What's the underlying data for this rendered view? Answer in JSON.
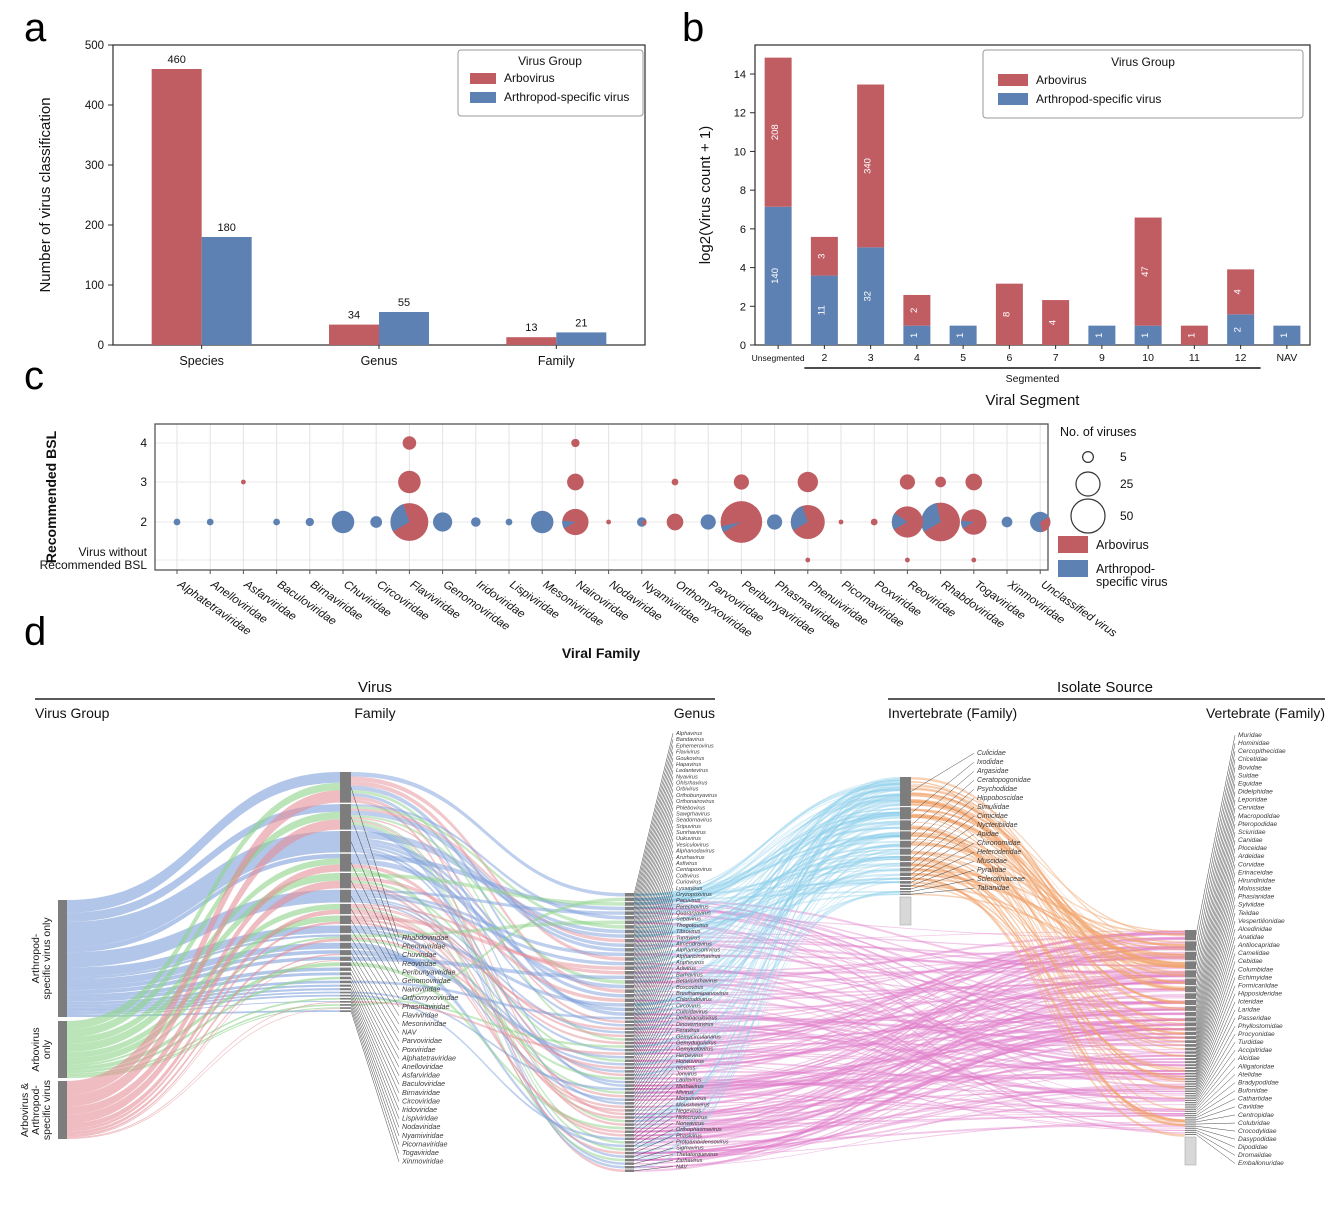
{
  "figure": {
    "panels": [
      {
        "letter": "a"
      },
      {
        "letter": "b"
      },
      {
        "letter": "c"
      },
      {
        "letter": "d"
      }
    ]
  },
  "palette": {
    "arbovirus": "#c05d63",
    "arthropod": "#5e81b4",
    "sankey_blue": "#7ea0dc",
    "sankey_green": "#8ed48a",
    "sankey_red": "#e59098",
    "node_gray": "#7d7d7d",
    "node_pale": "#d8d8d8"
  },
  "chart_data": [
    {
      "id": "a",
      "type": "bar",
      "legend_title": "Virus Group",
      "categories": [
        "Species",
        "Genus",
        "Family"
      ],
      "series": [
        {
          "name": "Arbovirus",
          "color": "#c05d63",
          "values": [
            460,
            34,
            13
          ]
        },
        {
          "name": "Arthropod-specific virus",
          "color": "#5e81b4",
          "values": [
            180,
            55,
            21
          ]
        }
      ],
      "ylabel": "Number of virus classification",
      "ylim": [
        0,
        500
      ],
      "yticks": [
        0,
        100,
        200,
        300,
        400,
        500
      ]
    },
    {
      "id": "b",
      "type": "stacked_bar",
      "legend_title": "Virus Group",
      "transform": "log2(count + 1)",
      "categories": [
        "Unsegmented",
        "2",
        "3",
        "4",
        "5",
        "6",
        "7",
        "9",
        "10",
        "11",
        "12",
        "NAV"
      ],
      "series": [
        {
          "name": "Arthropod-specific virus",
          "color": "#5e81b4",
          "counts": [
            140,
            11,
            32,
            1,
            1,
            0,
            0,
            1,
            1,
            0,
            2,
            1
          ]
        },
        {
          "name": "Arbovirus",
          "color": "#c05d63",
          "counts": [
            208,
            3,
            340,
            2,
            0,
            8,
            4,
            0,
            47,
            1,
            4,
            0
          ]
        }
      ],
      "ylabel": "log2(Virus count + 1)",
      "xlabel": "Viral Segment",
      "yticks": [
        0,
        2,
        4,
        6,
        8,
        10,
        12,
        14
      ],
      "bracket": {
        "label": "Segmented",
        "from": "2",
        "to": "12"
      }
    },
    {
      "id": "c",
      "type": "bubble",
      "ylabel": "Recommended BSL",
      "xlabel": "Viral Family",
      "rows": [
        "4",
        "3",
        "2",
        "Virus without|Recommended BSL"
      ],
      "families": [
        "Alphatetraviridae",
        "Anelloviridae",
        "Asfarviridae",
        "Baculoviridae",
        "Birnaviridae",
        "Chuviridae",
        "Circoviridae",
        "Flaviviridae",
        "Genomoviridae",
        "Iridoviridae",
        "Lispiviridae",
        "Mesoniviridae",
        "Nairoviridae",
        "Nodaviridae",
        "Nyamiviridae",
        "Orthomyxoviridae",
        "Parvoviridae",
        "Peribunyaviridae",
        "Phasmaviridae",
        "Phenuiviridae",
        "Picornaviridae",
        "Poxviridae",
        "Reoviridae",
        "Rhabdoviridae",
        "Togaviridae",
        "Xinmoviridae",
        "Unclassified virus"
      ],
      "bubbles": [
        {
          "family": "Alphatetraviridae",
          "bsl": "2",
          "n": 2,
          "arbo": 0
        },
        {
          "family": "Anelloviridae",
          "bsl": "2",
          "n": 2,
          "arbo": 0
        },
        {
          "family": "Asfarviridae",
          "bsl": "3",
          "n": 1,
          "arbo": 1
        },
        {
          "family": "Baculoviridae",
          "bsl": "2",
          "n": 2,
          "arbo": 0
        },
        {
          "family": "Birnaviridae",
          "bsl": "2",
          "n": 3,
          "arbo": 0
        },
        {
          "family": "Chuviridae",
          "bsl": "2",
          "n": 22,
          "arbo": 0
        },
        {
          "family": "Circoviridae",
          "bsl": "2",
          "n": 6,
          "arbo": 0
        },
        {
          "family": "Flaviviridae",
          "bsl": "4",
          "n": 8,
          "arbo": 1
        },
        {
          "family": "Flaviviridae",
          "bsl": "3",
          "n": 22,
          "arbo": 1
        },
        {
          "family": "Flaviviridae",
          "bsl": "2",
          "n": 62,
          "arbo": 0.72
        },
        {
          "family": "Genomoviridae",
          "bsl": "2",
          "n": 16,
          "arbo": 0
        },
        {
          "family": "Iridoviridae",
          "bsl": "2",
          "n": 4,
          "arbo": 0
        },
        {
          "family": "Lispiviridae",
          "bsl": "2",
          "n": 2,
          "arbo": 0
        },
        {
          "family": "Mesoniviridae",
          "bsl": "2",
          "n": 22,
          "arbo": 0
        },
        {
          "family": "Nairoviridae",
          "bsl": "4",
          "n": 3,
          "arbo": 1
        },
        {
          "family": "Nairoviridae",
          "bsl": "3",
          "n": 12,
          "arbo": 1
        },
        {
          "family": "Nairoviridae",
          "bsl": "2",
          "n": 30,
          "arbo": 0.9
        },
        {
          "family": "Nodaviridae",
          "bsl": "2",
          "n": 1,
          "arbo": 1
        },
        {
          "family": "Nyamiviridae",
          "bsl": "2",
          "n": 4,
          "arbo": 0.25
        },
        {
          "family": "Orthomyxoviridae",
          "bsl": "3",
          "n": 2,
          "arbo": 1
        },
        {
          "family": "Orthomyxoviridae",
          "bsl": "2",
          "n": 12,
          "arbo": 1
        },
        {
          "family": "Parvoviridae",
          "bsl": "2",
          "n": 10,
          "arbo": 0
        },
        {
          "family": "Peribunyaviridae",
          "bsl": "3",
          "n": 10,
          "arbo": 1
        },
        {
          "family": "Peribunyaviridae",
          "bsl": "2",
          "n": 75,
          "arbo": 0.95
        },
        {
          "family": "Phasmaviridae",
          "bsl": "2",
          "n": 10,
          "arbo": 0
        },
        {
          "family": "Phenuiviridae",
          "bsl": "3",
          "n": 18,
          "arbo": 1
        },
        {
          "family": "Phenuiviridae",
          "bsl": "2",
          "n": 50,
          "arbo": 0.72
        },
        {
          "family": "Phenuiviridae",
          "bsl": "0",
          "n": 1,
          "arbo": 1
        },
        {
          "family": "Picornaviridae",
          "bsl": "2",
          "n": 1,
          "arbo": 1
        },
        {
          "family": "Poxviridae",
          "bsl": "2",
          "n": 2,
          "arbo": 1
        },
        {
          "family": "Reoviridae",
          "bsl": "3",
          "n": 10,
          "arbo": 1
        },
        {
          "family": "Reoviridae",
          "bsl": "2",
          "n": 42,
          "arbo": 0.82
        },
        {
          "family": "Reoviridae",
          "bsl": "0",
          "n": 1,
          "arbo": 1
        },
        {
          "family": "Rhabdoviridae",
          "bsl": "3",
          "n": 5,
          "arbo": 1
        },
        {
          "family": "Rhabdoviridae",
          "bsl": "2",
          "n": 65,
          "arbo": 0.7
        },
        {
          "family": "Togaviridae",
          "bsl": "3",
          "n": 12,
          "arbo": 1
        },
        {
          "family": "Togaviridae",
          "bsl": "2",
          "n": 28,
          "arbo": 0.9
        },
        {
          "family": "Togaviridae",
          "bsl": "0",
          "n": 1,
          "arbo": 1
        },
        {
          "family": "Xinmoviridae",
          "bsl": "2",
          "n": 5,
          "arbo": 0
        },
        {
          "family": "Unclassified virus",
          "bsl": "2",
          "n": 18,
          "arbo": 0.3
        }
      ],
      "size_legend": {
        "title": "No. of viruses",
        "values": [
          5,
          25,
          50
        ]
      },
      "color_legend": [
        {
          "label": "Arbovirus",
          "color": "#c05d63"
        },
        {
          "label": "Arthropod-|specific virus",
          "color": "#5e81b4"
        }
      ]
    },
    {
      "id": "d",
      "type": "sankey",
      "headers": {
        "virus": "Virus",
        "virus_columns": [
          "Virus Group",
          "Family",
          "Genus"
        ],
        "isolate": "Isolate Source",
        "isolate_columns": [
          "Invertebrate (Family)",
          "Vertebrate (Family)"
        ]
      },
      "groups": [
        {
          "label": "Arthropod-specific virus only",
          "lines": [
            "Arthropod-",
            "specific virus only"
          ],
          "color": "#7ea0dc"
        },
        {
          "label": "Arbovirus only",
          "lines": [
            "Arbovirus",
            "only"
          ],
          "color": "#8ed48a"
        },
        {
          "label": "Arbovirus & Arthropod-specific virus",
          "lines": [
            "Arbovirus &",
            "Arthropod-",
            "specific virus"
          ],
          "color": "#e59098"
        }
      ],
      "families": [
        {
          "name": "Rhabdoviridae",
          "mix": [
            0.35,
            0.25,
            0.4
          ]
        },
        {
          "name": "Phenuiviridae",
          "mix": [
            0.3,
            0.3,
            0.4
          ]
        },
        {
          "name": "Chuviridae",
          "mix": [
            1,
            0,
            0
          ]
        },
        {
          "name": "Reoviridae",
          "mix": [
            0.25,
            0.35,
            0.4
          ]
        },
        {
          "name": "Peribunyaviridae",
          "mix": [
            0,
            0.5,
            0.5
          ]
        },
        {
          "name": "Genomoviridae",
          "mix": [
            1,
            0,
            0
          ]
        },
        {
          "name": "Nairoviridae",
          "mix": [
            0,
            0.55,
            0.45
          ]
        },
        {
          "name": "Orthomyxoviridae",
          "mix": [
            0,
            0.7,
            0.3
          ]
        },
        {
          "name": "Phasmaviridae",
          "mix": [
            1,
            0,
            0
          ]
        },
        {
          "name": "Flaviviridae",
          "mix": [
            0.3,
            0.3,
            0.4
          ]
        },
        {
          "name": "Mesoniviridae",
          "mix": [
            1,
            0,
            0
          ]
        },
        {
          "name": "NAV",
          "mix": [
            0.7,
            0,
            0.3
          ]
        },
        {
          "name": "Parvoviridae",
          "mix": [
            0.8,
            0,
            0.2
          ]
        },
        {
          "name": "Poxviridae",
          "mix": [
            0,
            1,
            0
          ]
        },
        {
          "name": "Alphatetraviridae",
          "mix": [
            1,
            0,
            0
          ]
        },
        {
          "name": "Anelloviridae",
          "mix": [
            1,
            0,
            0
          ]
        },
        {
          "name": "Asfarviridae",
          "mix": [
            0,
            1,
            0
          ]
        },
        {
          "name": "Baculoviridae",
          "mix": [
            1,
            0,
            0
          ]
        },
        {
          "name": "Birnaviridae",
          "mix": [
            1,
            0,
            0
          ]
        },
        {
          "name": "Circoviridae",
          "mix": [
            1,
            0,
            0
          ]
        },
        {
          "name": "Iridoviridae",
          "mix": [
            1,
            0,
            0
          ]
        },
        {
          "name": "Lispiviridae",
          "mix": [
            1,
            0,
            0
          ]
        },
        {
          "name": "Nodaviridae",
          "mix": [
            0,
            1,
            0
          ]
        },
        {
          "name": "Nyamiviridae",
          "mix": [
            0.5,
            0,
            0.5
          ]
        },
        {
          "name": "Picornaviridae",
          "mix": [
            0,
            1,
            0
          ]
        },
        {
          "name": "Togaviridae",
          "mix": [
            0,
            0.6,
            0.4
          ]
        },
        {
          "name": "Xinmoviridae",
          "mix": [
            1,
            0,
            0
          ]
        }
      ],
      "genera": [
        "Alphavirus",
        "Bandavirus",
        "Ephemerovirus",
        "Flavivirus",
        "Goukovirus",
        "Hapavirus",
        "Ledantevirus",
        "Nyavirus",
        "Ohlsrhavirus",
        "Orbivirus",
        "Orthobunyavirus",
        "Orthonairovirus",
        "Phlebovirus",
        "Sawgrhavirus",
        "Seadornavirus",
        "Sripuvirus",
        "Sunrhavirus",
        "Uukuvirus",
        "Vesiculovirus",
        "Alphanodavirus",
        "Arurhavirus",
        "Asfivirus",
        "Centapoxvirus",
        "Coltivirus",
        "Curiovirus",
        "Lyssavirus",
        "Oryzopoxvirus",
        "Pacuvirus",
        "Parechovirus",
        "Quaranjavirus",
        "Sabavirus",
        "Thogotovirus",
        "Tibrovirus",
        "Tupavirus",
        "Almendravirus",
        "Alphamesonivirus",
        "Alpharicinrhavirus",
        "Anphevirus",
        "Arlivirus",
        "Barhavirus",
        "Betaricinrhavirus",
        "Boscovirus",
        "Brevihamaparvovirus",
        "Chlorindovirus",
        "Circovirus",
        "Culicidavirus",
        "Deltabaculovirus",
        "Dinovernavirus",
        "Feravirus",
        "Gemycircularvirus",
        "Gemyduguivirus",
        "Gemykolovirus",
        "Herbevirus",
        "Horwuvirus",
        "Ixovirus",
        "Jonvirus",
        "Laulavirus",
        "Merhavirus",
        "Mivirus",
        "Morsusvirus",
        "Mousrhavirus",
        "Negevirus",
        "Nidecruvirus",
        "Norwavirus",
        "Orthophasmavirus",
        "Phasivirus",
        "Protoambidensovirus",
        "Sigmavirus",
        "Thetatorquevirus",
        "Zarhavirus",
        "NAV"
      ],
      "invertebrates": [
        "Culicidae",
        "Ixodidae",
        "Argasidae",
        "Ceratopogonidae",
        "Psychodidae",
        "Hippoboscidae",
        "Simuliidae",
        "Cimicidae",
        "Nycteribiidae",
        "Apidae",
        "Chironomidae",
        "Heteroderidae",
        "Muscidae",
        "Pyralidae",
        "Sclerotiniaceae",
        "Tabanidae"
      ],
      "vertebrates": [
        "Muridae",
        "Hominidae",
        "Cercopithecidae",
        "Cricetidae",
        "Bovidae",
        "Suidae",
        "Equidae",
        "Didelphidae",
        "Leporidae",
        "Cervidae",
        "Macropodidae",
        "Pteropodidae",
        "Sciuridae",
        "Canidae",
        "Ploceidae",
        "Ardeidae",
        "Corvidae",
        "Erinaceidae",
        "Hirundinidae",
        "Molossidae",
        "Phasianidae",
        "Sylviidae",
        "Teiidae",
        "Vespertilionidae",
        "Alcedinidae",
        "Anatidae",
        "Antilocapridae",
        "Camelidae",
        "Cebidae",
        "Columbidae",
        "Echimyidae",
        "Formicariidae",
        "Hipposideridae",
        "Icteridae",
        "Laridae",
        "Passeridae",
        "Phyllostomidae",
        "Procyonidae",
        "Turdidae",
        "Accipitridae",
        "Alcidae",
        "Alligatoridae",
        "Atelidae",
        "Bradypodidae",
        "Bufonidae",
        "Cathartidae",
        "Caviidae",
        "Centropidae",
        "Colubridae",
        "Crocodylidae",
        "Dasypodidae",
        "Dipodidae",
        "Dromaiidae",
        "Emballonuridae"
      ],
      "flow_colors": {
        "to_invertebrate": "#89cde9",
        "to_vertebrate": "#e17fcb",
        "invertebrate_to_vertebrate": "#f2a46b"
      },
      "seed": 7
    }
  ]
}
